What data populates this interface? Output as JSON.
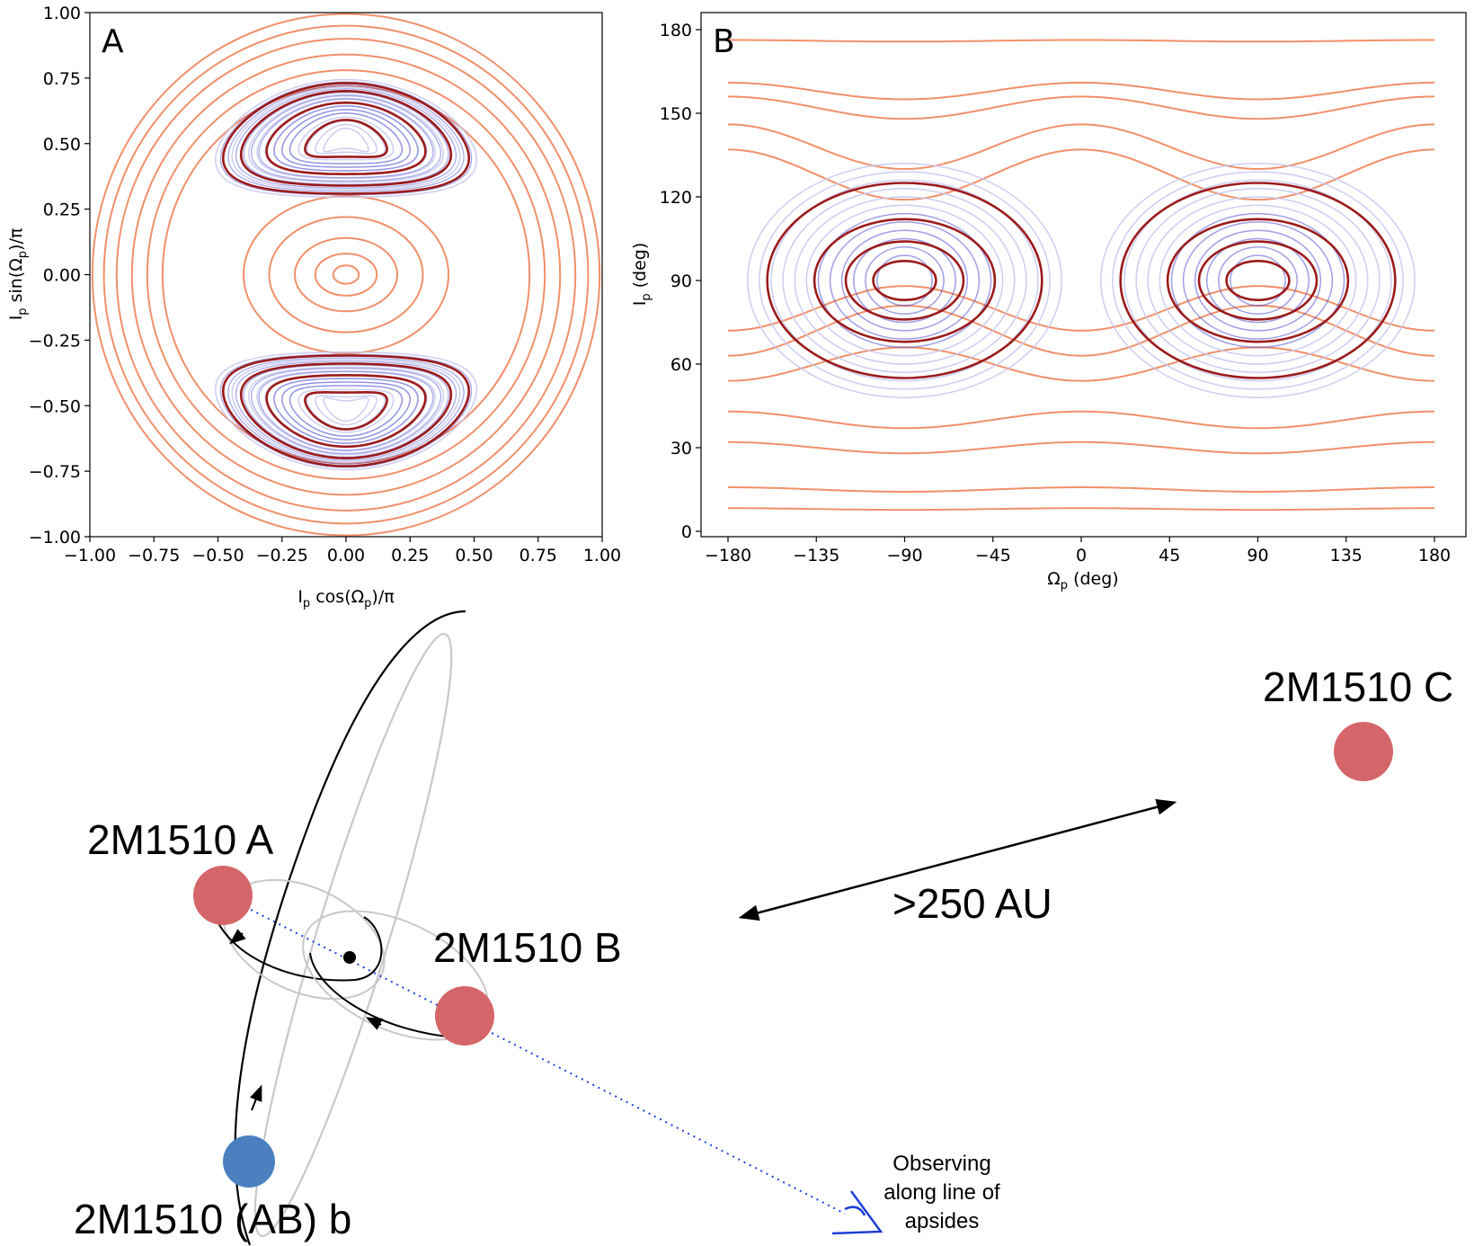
{
  "panel_a": {
    "letter": "A",
    "xlabel_main": "I",
    "xlabel_sub": "p",
    "xlabel_rest": " cos(Ω",
    "xlabel_sub2": "p",
    "xlabel_end": ")/π",
    "ylabel_main": "I",
    "ylabel_sub": "p",
    "ylabel_rest": " sin(Ω",
    "ylabel_sub2": "p",
    "ylabel_end": ")/π",
    "xticks": [
      "−1.00",
      "−0.75",
      "−0.50",
      "−0.25",
      "0.00",
      "0.25",
      "0.50",
      "0.75",
      "1.00"
    ],
    "yticks": [
      "1.00",
      "0.75",
      "0.50",
      "0.25",
      "0.00",
      "−0.25",
      "−0.50",
      "−0.75",
      "−1.00"
    ]
  },
  "panel_b": {
    "letter": "B",
    "xlabel_main": "Ω",
    "xlabel_sub": "p",
    "xlabel_rest": " (deg)",
    "ylabel_main": "I",
    "ylabel_sub": "p",
    "ylabel_rest": " (deg)",
    "xticks": [
      "−180",
      "−135",
      "−90",
      "−45",
      "0",
      "45",
      "90",
      "135",
      "180"
    ],
    "yticks": [
      "180",
      "150",
      "120",
      "90",
      "60",
      "30",
      "0"
    ]
  },
  "colors": {
    "circulating": "#f0906a",
    "librating_dark": "#9b1b1b",
    "librating_blue": "#4040d0",
    "librating_faint": "#c8c8ee",
    "star": "#d4666a",
    "planet": "#4a80c0",
    "observer": "#1e3fd8"
  },
  "diagram": {
    "star_a": "2M1510 A",
    "star_b": "2M1510 B",
    "star_c": "2M1510 C",
    "planet": "2M1510 (AB) b",
    "distance": ">250 AU",
    "observer_line1": "Observing",
    "observer_line2": "along line of",
    "observer_line3": "apsides",
    "observer_icon": "eye-icon"
  }
}
